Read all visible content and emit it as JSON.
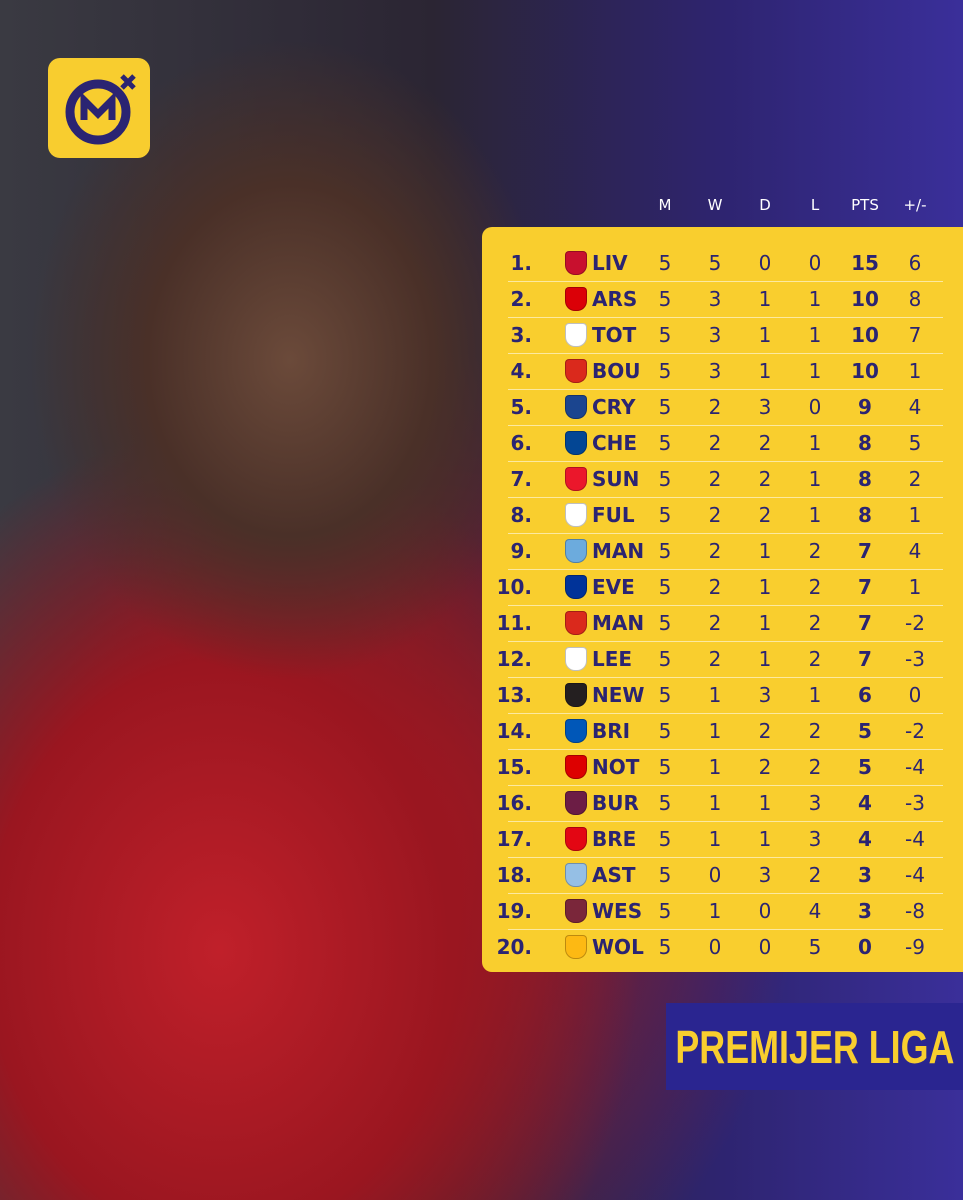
{
  "table": {
    "headers": [
      "M",
      "W",
      "D",
      "L",
      "PTS",
      "+/-"
    ],
    "rows": [
      [
        "1.",
        "LIV",
        5,
        5,
        0,
        0,
        15,
        6
      ],
      [
        "2.",
        "ARS",
        5,
        3,
        1,
        1,
        10,
        8
      ],
      [
        "3.",
        "TOT",
        5,
        3,
        1,
        1,
        10,
        7
      ],
      [
        "4.",
        "BOU",
        5,
        3,
        1,
        1,
        10,
        1
      ],
      [
        "5.",
        "CRY",
        5,
        2,
        3,
        0,
        9,
        4
      ],
      [
        "6.",
        "CHE",
        5,
        2,
        2,
        1,
        8,
        5
      ],
      [
        "7.",
        "SUN",
        5,
        2,
        2,
        1,
        8,
        2
      ],
      [
        "8.",
        "FUL",
        5,
        2,
        2,
        1,
        8,
        1
      ],
      [
        "9.",
        "MAN",
        5,
        2,
        1,
        2,
        7,
        4
      ],
      [
        "10.",
        "EVE",
        5,
        2,
        1,
        2,
        7,
        1
      ],
      [
        "11.",
        "MAN",
        5,
        2,
        1,
        2,
        7,
        -2
      ],
      [
        "12.",
        "LEE",
        5,
        2,
        1,
        2,
        7,
        -3
      ],
      [
        "13.",
        "NEW",
        5,
        1,
        3,
        1,
        6,
        0
      ],
      [
        "14.",
        "BRI",
        5,
        1,
        2,
        2,
        5,
        -2
      ],
      [
        "15.",
        "NOT",
        5,
        1,
        2,
        2,
        5,
        -4
      ],
      [
        "16.",
        "BUR",
        5,
        1,
        1,
        3,
        4,
        -3
      ],
      [
        "17.",
        "BRE",
        5,
        1,
        1,
        3,
        4,
        -4
      ],
      [
        "18.",
        "AST",
        5,
        0,
        3,
        2,
        3,
        -4
      ],
      [
        "19.",
        "WES",
        5,
        1,
        0,
        4,
        3,
        -8
      ],
      [
        "20.",
        "WOL",
        5,
        0,
        0,
        5,
        0,
        -9
      ]
    ]
  },
  "banner": {
    "title": "PREMIJER LIGA"
  }
}
